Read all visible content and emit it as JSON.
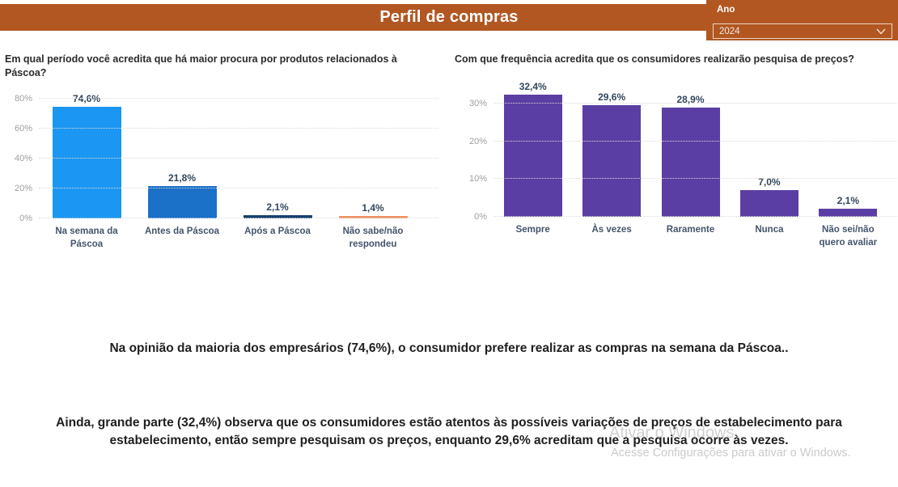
{
  "header": {
    "title": "Perfil de compras",
    "banner_color": "#B25721"
  },
  "filter": {
    "label": "Ano",
    "value": "2024"
  },
  "chart_data": [
    {
      "type": "bar",
      "title": "Em qual período você acredita que há maior procura por produtos relacionados à Páscoa?",
      "categories": [
        "Na semana da Páscoa",
        "Antes da Páscoa",
        "Após a Páscoa",
        "Não sabe/não respondeu"
      ],
      "values": [
        74.6,
        21.8,
        2.1,
        1.4
      ],
      "value_labels": [
        "74,6%",
        "21,8%",
        "2,1%",
        "1,4%"
      ],
      "bar_colors": [
        "#1B96F2",
        "#1B70C8",
        "#17406E",
        "#F0915F"
      ],
      "yticks": [
        0,
        20,
        40,
        60,
        80
      ],
      "ytick_labels": [
        "0%",
        "20%",
        "40%",
        "60%",
        "80%"
      ],
      "ylim": [
        0,
        84
      ],
      "grid": true,
      "unit": "%",
      "xlabel": "",
      "ylabel": ""
    },
    {
      "type": "bar",
      "title": "Com que frequência acredita que os consumidores realizarão pesquisa de preços?",
      "categories": [
        "Sempre",
        "Às vezes",
        "Raramente",
        "Nunca",
        "Não sei/não quero avaliar"
      ],
      "values": [
        32.4,
        29.6,
        28.9,
        7.0,
        2.1
      ],
      "value_labels": [
        "32,4%",
        "29,6%",
        "28,9%",
        "7,0%",
        "2,1%"
      ],
      "bar_colors": [
        "#5B3EA3",
        "#5B3EA3",
        "#5B3EA3",
        "#5B3EA3",
        "#5B3EA3"
      ],
      "yticks": [
        0,
        10,
        20,
        30
      ],
      "ytick_labels": [
        "0%",
        "10%",
        "20%",
        "30%"
      ],
      "ylim": [
        0,
        35
      ],
      "grid": true,
      "unit": "%",
      "xlabel": "",
      "ylabel": ""
    }
  ],
  "insights": {
    "paragraph1": "Na opinião da maioria dos empresários (74,6%), o consumidor prefere realizar as compras na semana da Páscoa..",
    "paragraph2": "Ainda, grande parte (32,4%) observa que os consumidores estão atentos às possíveis variações de preços de estabelecimento para estabelecimento, então sempre pesquisam os preços, enquanto 29,6% acreditam que a pesquisa ocorre às vezes."
  },
  "watermark": {
    "line1": "Ativar o Windows",
    "line2": "Acesse Configurações para ativar o Windows."
  }
}
